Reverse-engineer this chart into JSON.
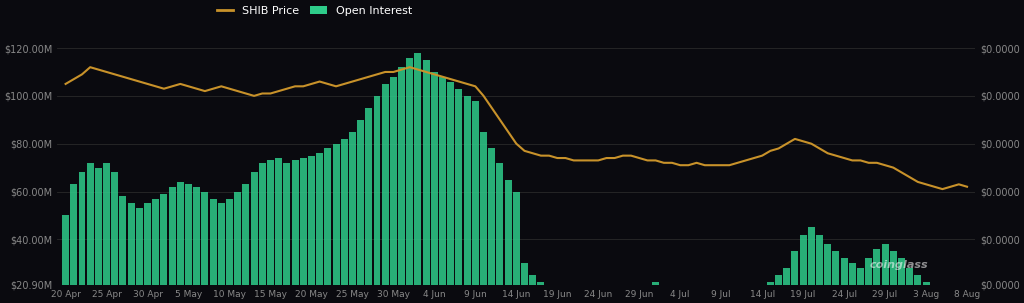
{
  "background_color": "#0a0a0f",
  "bar_color": "#2ecc8a",
  "line_color": "#c8922a",
  "legend_shib": "SHIB Price",
  "legend_oi": "Open Interest",
  "x_labels": [
    "20 Apr",
    "25 Apr",
    "30 Apr",
    "5 May",
    "10 May",
    "15 May",
    "20 May",
    "25 May",
    "30 May",
    "4 Jun",
    "9 Jun",
    "14 Jun",
    "19 Jun",
    "24 Jun",
    "29 Jun",
    "4 Jul",
    "9 Jul",
    "14 Jul",
    "19 Jul",
    "24 Jul",
    "29 Jul",
    "3 Aug",
    "8 Aug"
  ],
  "oi_bars": [
    50,
    63,
    68,
    72,
    70,
    72,
    68,
    58,
    55,
    53,
    55,
    57,
    59,
    62,
    64,
    63,
    62,
    60,
    57,
    55,
    57,
    60,
    63,
    68,
    72,
    73,
    74,
    72,
    73,
    74,
    75,
    76,
    78,
    80,
    82,
    85,
    90,
    95,
    100,
    105,
    108,
    112,
    116,
    118,
    115,
    110,
    108,
    106,
    103,
    100,
    98,
    85,
    78,
    72,
    65,
    60,
    30,
    25,
    22,
    20,
    18,
    17,
    16,
    15,
    15,
    14,
    16,
    17,
    18,
    19,
    20,
    21,
    22,
    20,
    18,
    16,
    15,
    14,
    13,
    14,
    15,
    16,
    17,
    18,
    19,
    20,
    22,
    25,
    28,
    35,
    42,
    45,
    42,
    38,
    35,
    32,
    30,
    28,
    32,
    36,
    38,
    35,
    32,
    28,
    25,
    22,
    18,
    14,
    10,
    6,
    3
  ],
  "shib_line": [
    105,
    107,
    109,
    112,
    111,
    110,
    109,
    108,
    107,
    106,
    105,
    104,
    103,
    104,
    105,
    104,
    103,
    102,
    103,
    104,
    103,
    102,
    101,
    100,
    101,
    101,
    102,
    103,
    104,
    104,
    105,
    106,
    105,
    104,
    105,
    106,
    107,
    108,
    109,
    110,
    110,
    111,
    112,
    111,
    110,
    109,
    108,
    107,
    106,
    105,
    104,
    100,
    95,
    90,
    85,
    80,
    77,
    76,
    75,
    75,
    74,
    74,
    73,
    73,
    73,
    73,
    74,
    74,
    75,
    75,
    74,
    73,
    73,
    72,
    72,
    71,
    71,
    72,
    71,
    71,
    71,
    71,
    72,
    73,
    74,
    75,
    77,
    78,
    80,
    82,
    81,
    80,
    78,
    76,
    75,
    74,
    73,
    73,
    72,
    72,
    71,
    70,
    68,
    66,
    64,
    63,
    62,
    61,
    62,
    63,
    62
  ],
  "ylim_left": [
    20.9,
    128
  ],
  "watermark": "coinglass"
}
